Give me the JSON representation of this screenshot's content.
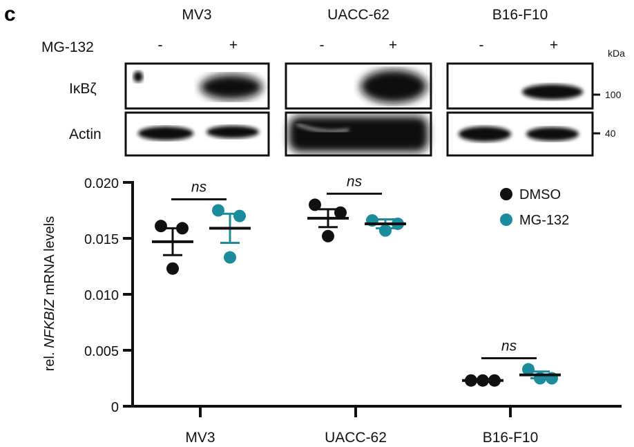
{
  "panel_letter": "c",
  "blot": {
    "cell_lines": [
      "MV3",
      "UACC-62",
      "B16-F10"
    ],
    "treatment_label": "MG-132",
    "signs": [
      "-",
      "+"
    ],
    "rows": [
      "IκBζ",
      "Actin"
    ],
    "kda_label": "kDa",
    "markers": [
      "100",
      "40"
    ]
  },
  "chart_data": {
    "type": "scatter",
    "ylabel_prefix": "rel. ",
    "ylabel_italic": "NFKBIZ",
    "ylabel_suffix": " mRNA levels",
    "ylim": [
      0,
      0.02
    ],
    "yticks": [
      "0",
      "0.005",
      "0.010",
      "0.015",
      "0.020"
    ],
    "ytick_values": [
      0,
      0.005,
      0.01,
      0.015,
      0.02
    ],
    "categories": [
      "MV3",
      "UACC-62",
      "B16-F10"
    ],
    "grid": false,
    "legend_placement": "top-right",
    "series": [
      {
        "name": "DMSO",
        "color": "#111111",
        "points": [
          [
            0.0161,
            0.0159,
            0.0123
          ],
          [
            0.018,
            0.0173,
            0.0152
          ],
          [
            0.0023,
            0.0023,
            0.0023
          ]
        ],
        "mean": [
          0.0147,
          0.0168,
          0.0023
        ],
        "sem": [
          0.0012,
          0.0008,
          0.0001
        ]
      },
      {
        "name": "MG-132",
        "color": "#1a8c9c",
        "points": [
          [
            0.0175,
            0.017,
            0.0133
          ],
          [
            0.0166,
            0.0163,
            0.0157
          ],
          [
            0.0033,
            0.0025,
            0.0025
          ]
        ],
        "mean": [
          0.0159,
          0.0163,
          0.0028
        ],
        "sem": [
          0.0013,
          0.0004,
          0.0003
        ]
      }
    ],
    "significance": [
      "ns",
      "ns",
      "ns"
    ]
  }
}
